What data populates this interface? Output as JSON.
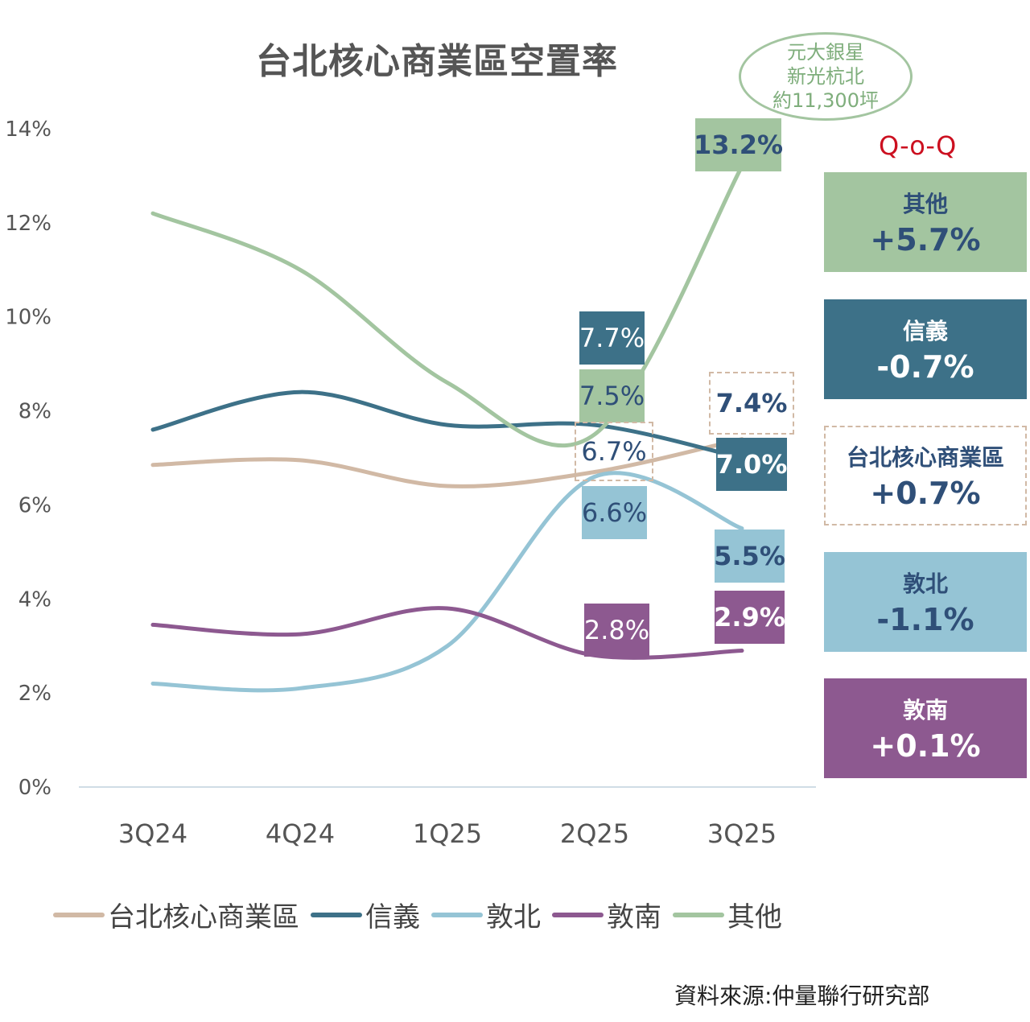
{
  "chart_data": {
    "type": "line",
    "title": "台北核心商業區空置率",
    "categories": [
      "3Q24",
      "4Q24",
      "1Q25",
      "2Q25",
      "3Q25"
    ],
    "ylim": [
      0,
      14
    ],
    "yticks": [
      "0%",
      "2%",
      "4%",
      "6%",
      "8%",
      "10%",
      "12%",
      "14%"
    ],
    "grid": false,
    "legend_position": "bottom",
    "series": [
      {
        "name": "台北核心商業區",
        "color": "#d1b9a5",
        "values": [
          6.85,
          6.95,
          6.4,
          6.7,
          7.4
        ]
      },
      {
        "name": "信義",
        "color": "#3d7188",
        "values": [
          7.6,
          8.4,
          7.7,
          7.7,
          7.0
        ]
      },
      {
        "name": "敦北",
        "color": "#95c4d5",
        "values": [
          2.2,
          2.1,
          3.0,
          6.6,
          5.5
        ]
      },
      {
        "name": "敦南",
        "color": "#8d5990",
        "values": [
          3.45,
          3.25,
          3.8,
          2.8,
          2.9
        ]
      },
      {
        "name": "其他",
        "color": "#a3c5a0",
        "values": [
          12.2,
          11.0,
          8.6,
          7.5,
          13.2
        ]
      }
    ],
    "data_labels": {
      "2Q25": [
        "7.7%",
        "7.5%",
        "6.7%",
        "6.6%",
        "2.8%"
      ],
      "3Q25": [
        "13.2%",
        "7.4%",
        "7.0%",
        "5.5%",
        "2.9%"
      ]
    },
    "annotation": [
      "元大銀星",
      "新光杭北",
      "約11,300坪"
    ],
    "qoq_title": "Q-o-Q",
    "qoq": [
      {
        "name": "其他",
        "value": "+5.7%"
      },
      {
        "name": "信義",
        "value": "-0.7%"
      },
      {
        "name": "台北核心商業區",
        "value": "+0.7%"
      },
      {
        "name": "敦北",
        "value": "-1.1%"
      },
      {
        "name": "敦南",
        "value": "+0.1%"
      }
    ],
    "source": "資料來源:仲量聯行研究部"
  }
}
